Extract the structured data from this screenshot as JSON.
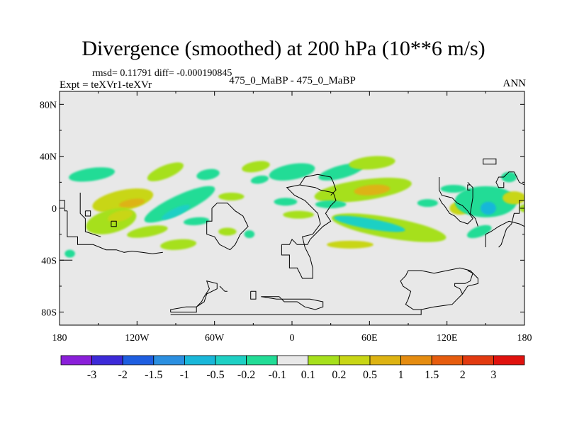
{
  "title": "Divergence (smoothed) at 200 hPa (10**6 m/s)",
  "stats_line": "rmsd= 0.11791 diff= -0.000190845",
  "expt_line": "Expt = teXVr1-teXVr",
  "case_line": "475_0_MaBP - 475_0_MaBP",
  "season": "ANN",
  "chart_data": {
    "type": "heatmap",
    "title": "Divergence (smoothed) at 200 hPa (10**6 m/s)",
    "projection": "cylindrical equidistant",
    "xlim": [
      -180,
      180
    ],
    "ylim": [
      -90,
      90
    ],
    "x_ticks": [
      {
        "value": -180,
        "label": "180"
      },
      {
        "value": -120,
        "label": "120W"
      },
      {
        "value": -60,
        "label": "60W"
      },
      {
        "value": 0,
        "label": "0"
      },
      {
        "value": 60,
        "label": "60E"
      },
      {
        "value": 120,
        "label": "120E"
      },
      {
        "value": 180,
        "label": "180"
      }
    ],
    "y_ticks": [
      {
        "value": 80,
        "label": "80N"
      },
      {
        "value": 40,
        "label": "40N"
      },
      {
        "value": 0,
        "label": "0"
      },
      {
        "value": -40,
        "label": "40S"
      },
      {
        "value": -80,
        "label": "80S"
      }
    ],
    "colorbar": {
      "labels": [
        "-3",
        "-2",
        "-1.5",
        "-1",
        "-0.5",
        "-0.2",
        "-0.1",
        "0.1",
        "0.2",
        "0.5",
        "1",
        "1.5",
        "2",
        "3"
      ],
      "colors": [
        "#8a1fd9",
        "#3c2ad8",
        "#1e5ee0",
        "#2b8fe0",
        "#19b7d9",
        "#1ed0c4",
        "#22dc96",
        "#e8e8e8",
        "#a6e01c",
        "#c8d615",
        "#ddb312",
        "#e58c10",
        "#e65c0e",
        "#e23a10",
        "#e0120e"
      ]
    },
    "background_color": "#e8e8e8",
    "features": [
      {
        "lon": -155,
        "lat": 26,
        "rlon": 18,
        "rlat": 5,
        "rot": -8,
        "cls": 6
      },
      {
        "lon": -131,
        "lat": 6,
        "rlon": 24,
        "rlat": 8,
        "rot": -12,
        "cls": 9
      },
      {
        "lon": -124,
        "lat": 4,
        "rlon": 10,
        "rlat": 3,
        "rot": -10,
        "cls": 10
      },
      {
        "lon": -140,
        "lat": -10,
        "rlon": 20,
        "rlat": 9,
        "rot": -15,
        "cls": 8
      },
      {
        "lon": -133,
        "lat": -6,
        "rlon": 10,
        "rlat": 4,
        "rot": -15,
        "cls": 9
      },
      {
        "lon": -98,
        "lat": 28,
        "rlon": 15,
        "rlat": 5,
        "rot": -22,
        "cls": 8
      },
      {
        "lon": -87,
        "lat": 3,
        "rlon": 30,
        "rlat": 7,
        "rot": -25,
        "cls": 6
      },
      {
        "lon": -90,
        "lat": -3,
        "rlon": 12,
        "rlat": 3,
        "rot": -25,
        "cls": 5
      },
      {
        "lon": -65,
        "lat": 26,
        "rlon": 9,
        "rlat": 4,
        "rot": -10,
        "cls": 6
      },
      {
        "lon": -112,
        "lat": -18,
        "rlon": 16,
        "rlat": 4,
        "rot": -10,
        "cls": 8
      },
      {
        "lon": -88,
        "lat": -28,
        "rlon": 14,
        "rlat": 4,
        "rot": -5,
        "cls": 8
      },
      {
        "lon": -74,
        "lat": -10,
        "rlon": 10,
        "rlat": 3,
        "rot": -5,
        "cls": 6
      },
      {
        "lon": -47,
        "lat": 9,
        "rlon": 10,
        "rlat": 3,
        "rot": 0,
        "cls": 8
      },
      {
        "lon": -50,
        "lat": -18,
        "rlon": 7,
        "rlat": 3,
        "rot": 0,
        "cls": 8
      },
      {
        "lon": -33,
        "lat": -20,
        "rlon": 4,
        "rlat": 3,
        "rot": 0,
        "cls": 6
      },
      {
        "lon": -28,
        "lat": 32,
        "rlon": 11,
        "rlat": 4,
        "rot": -10,
        "cls": 8
      },
      {
        "lon": -25,
        "lat": 22,
        "rlon": 7,
        "rlat": 3,
        "rot": -10,
        "cls": 6
      },
      {
        "lon": 0,
        "lat": 28,
        "rlon": 18,
        "rlat": 6,
        "rot": -10,
        "cls": 6
      },
      {
        "lon": -5,
        "lat": 5,
        "rlon": 9,
        "rlat": 3,
        "rot": 0,
        "cls": 6
      },
      {
        "lon": 5,
        "lat": -5,
        "rlon": 12,
        "rlat": 3,
        "rot": 0,
        "cls": 8
      },
      {
        "lon": 38,
        "lat": 28,
        "rlon": 18,
        "rlat": 5,
        "rot": -15,
        "cls": 6
      },
      {
        "lon": 62,
        "lat": 35,
        "rlon": 18,
        "rlat": 5,
        "rot": -5,
        "cls": 8
      },
      {
        "lon": 55,
        "lat": 14,
        "rlon": 38,
        "rlat": 8,
        "rot": -8,
        "cls": 8
      },
      {
        "lon": 62,
        "lat": 14,
        "rlon": 14,
        "rlat": 4,
        "rot": -5,
        "cls": 10
      },
      {
        "lon": 30,
        "lat": 3,
        "rlon": 12,
        "rlat": 3,
        "rot": 0,
        "cls": 6
      },
      {
        "lon": 75,
        "lat": -15,
        "rlon": 45,
        "rlat": 8,
        "rot": 10,
        "cls": 8
      },
      {
        "lon": 60,
        "lat": -12,
        "rlon": 28,
        "rlat": 4,
        "rot": 10,
        "cls": 5
      },
      {
        "lon": 45,
        "lat": -28,
        "rlon": 18,
        "rlat": 3,
        "rot": 0,
        "cls": 9
      },
      {
        "lon": 105,
        "lat": 4,
        "rlon": 8,
        "rlat": 3,
        "rot": 0,
        "cls": 6
      },
      {
        "lon": 125,
        "lat": 15,
        "rlon": 10,
        "rlat": 3,
        "rot": 0,
        "cls": 6
      },
      {
        "lon": 130,
        "lat": 0,
        "rlon": 8,
        "rlat": 5,
        "rot": 0,
        "cls": 9
      },
      {
        "lon": 150,
        "lat": 5,
        "rlon": 24,
        "rlat": 12,
        "rot": 0,
        "cls": 6
      },
      {
        "lon": 152,
        "lat": 0,
        "rlon": 6,
        "rlat": 5,
        "rot": 0,
        "cls": 4
      },
      {
        "lon": 172,
        "lat": 8,
        "rlon": 9,
        "rlat": 5,
        "rot": 0,
        "cls": 9
      },
      {
        "lon": 168,
        "lat": 24,
        "rlon": 6,
        "rlat": 4,
        "rot": 0,
        "cls": 6
      },
      {
        "lon": 145,
        "lat": -18,
        "rlon": 10,
        "rlat": 4,
        "rot": -20,
        "cls": 6
      },
      {
        "lon": 180,
        "lat": 0,
        "rlon": 4,
        "rlat": 3,
        "rot": 0,
        "cls": 8
      },
      {
        "lon": -172,
        "lat": -35,
        "rlon": 4,
        "rlat": 3,
        "rot": 0,
        "cls": 6
      }
    ],
    "coastlines": [
      [
        [
          -174,
          -2
        ],
        [
          -174,
          -22
        ],
        [
          -166,
          -22
        ],
        [
          -166,
          -28
        ],
        [
          -154,
          -28
        ],
        [
          -144,
          -32
        ],
        [
          -136,
          -32
        ],
        [
          -130,
          -34
        ],
        [
          -124,
          -33
        ],
        [
          -116,
          -34
        ],
        [
          -108,
          -35
        ],
        [
          -100,
          -34
        ]
      ],
      [
        [
          -164,
          12
        ],
        [
          -164,
          -4
        ],
        [
          -160,
          -8
        ],
        [
          -160,
          -18
        ],
        [
          -148,
          -22
        ]
      ],
      [
        [
          -140,
          -10
        ],
        [
          -136,
          -10
        ],
        [
          -136,
          -14
        ],
        [
          -140,
          -14
        ],
        [
          -140,
          -10
        ]
      ],
      [
        [
          -160,
          -2
        ],
        [
          -156,
          -2
        ],
        [
          -156,
          -6
        ],
        [
          -160,
          -6
        ],
        [
          -160,
          -2
        ]
      ],
      [
        [
          -180,
          6
        ],
        [
          -176,
          6
        ],
        [
          -176,
          -2
        ],
        [
          -174,
          -2
        ]
      ],
      [
        [
          -62,
          0
        ],
        [
          -62,
          -10
        ],
        [
          -66,
          -10
        ],
        [
          -66,
          -20
        ],
        [
          -60,
          -22
        ],
        [
          -56,
          -28
        ],
        [
          -48,
          -32
        ],
        [
          -44,
          -28
        ],
        [
          -40,
          -20
        ],
        [
          -34,
          -14
        ],
        [
          -38,
          -6
        ],
        [
          -44,
          -2
        ],
        [
          -50,
          4
        ],
        [
          -58,
          4
        ],
        [
          -62,
          0
        ]
      ],
      [
        [
          -8,
          -28
        ],
        [
          -8,
          -36
        ],
        [
          -2,
          -36
        ],
        [
          -2,
          -46
        ],
        [
          4,
          -46
        ],
        [
          8,
          -54
        ],
        [
          16,
          -54
        ],
        [
          16,
          -46
        ],
        [
          14,
          -38
        ],
        [
          10,
          -30
        ],
        [
          8,
          -22
        ],
        [
          16,
          -20
        ],
        [
          22,
          -12
        ],
        [
          20,
          -4
        ],
        [
          10,
          6
        ],
        [
          2,
          10
        ],
        [
          -4,
          16
        ],
        [
          6,
          18
        ],
        [
          18,
          16
        ],
        [
          22,
          14
        ],
        [
          32,
          12
        ],
        [
          34,
          6
        ],
        [
          30,
          2
        ],
        [
          26,
          -4
        ],
        [
          30,
          -10
        ],
        [
          24,
          -14
        ],
        [
          20,
          -18
        ],
        [
          14,
          -24
        ],
        [
          12,
          -28
        ],
        [
          4,
          -28
        ],
        [
          0,
          -24
        ],
        [
          -2,
          -28
        ],
        [
          -8,
          -28
        ]
      ],
      [
        [
          6,
          18
        ],
        [
          10,
          24
        ],
        [
          20,
          26
        ],
        [
          30,
          24
        ],
        [
          32,
          20
        ],
        [
          34,
          14
        ],
        [
          30,
          10
        ]
      ],
      [
        [
          114,
          24
        ],
        [
          114,
          14
        ],
        [
          116,
          10
        ],
        [
          124,
          8
        ],
        [
          128,
          4
        ],
        [
          132,
          2
        ],
        [
          136,
          -2
        ],
        [
          140,
          -8
        ],
        [
          136,
          -12
        ],
        [
          130,
          -10
        ],
        [
          126,
          -6
        ],
        [
          122,
          -4
        ],
        [
          118,
          2
        ],
        [
          116,
          4
        ],
        [
          114,
          8
        ]
      ],
      [
        [
          -180,
          -40
        ],
        [
          -170,
          -40
        ]
      ],
      [
        [
          -32,
          -64
        ],
        [
          -32,
          -70
        ],
        [
          -28,
          -70
        ],
        [
          -28,
          -64
        ],
        [
          -32,
          -64
        ]
      ],
      [
        [
          -56,
          -60
        ],
        [
          -52,
          -64
        ],
        [
          -50,
          -64
        ]
      ],
      [
        [
          -94,
          -80
        ],
        [
          -74,
          -80
        ],
        [
          -74,
          -76
        ],
        [
          -70,
          -72
        ],
        [
          -68,
          -68
        ],
        [
          -64,
          -62
        ],
        [
          -66,
          -56
        ],
        [
          -58,
          -58
        ],
        [
          -58,
          -62
        ],
        [
          -66,
          -66
        ],
        [
          -68,
          -72
        ],
        [
          -74,
          -76
        ],
        [
          -82,
          -76
        ],
        [
          -94,
          -78
        ],
        [
          -94,
          -80
        ]
      ],
      [
        [
          -94,
          -82
        ],
        [
          -60,
          -82
        ],
        [
          0,
          -82
        ],
        [
          60,
          -82
        ],
        [
          90,
          -82
        ],
        [
          100,
          -82
        ],
        [
          100,
          -78
        ],
        [
          110,
          -76
        ],
        [
          124,
          -74
        ],
        [
          128,
          -70
        ],
        [
          132,
          -66
        ],
        [
          136,
          -60
        ],
        [
          144,
          -58
        ],
        [
          144,
          -54
        ],
        [
          138,
          -48
        ],
        [
          130,
          -46
        ],
        [
          120,
          -48
        ],
        [
          110,
          -50
        ],
        [
          100,
          -48
        ],
        [
          94,
          -48
        ],
        [
          90,
          -48
        ],
        [
          88,
          -52
        ],
        [
          84,
          -56
        ],
        [
          86,
          -60
        ],
        [
          92,
          -64
        ],
        [
          90,
          -70
        ],
        [
          88,
          -74
        ],
        [
          94,
          -78
        ],
        [
          100,
          -78
        ]
      ],
      [
        [
          -24,
          -68
        ],
        [
          -10,
          -68
        ],
        [
          -6,
          -72
        ],
        [
          4,
          -72
        ],
        [
          10,
          -76
        ],
        [
          18,
          -78
        ],
        [
          24,
          -76
        ],
        [
          24,
          -72
        ],
        [
          14,
          -70
        ],
        [
          0,
          -70
        ],
        [
          -12,
          -70
        ],
        [
          -24,
          -68
        ]
      ],
      [
        [
          132,
          -66
        ],
        [
          130,
          -62
        ],
        [
          126,
          -60
        ],
        [
          126,
          -58
        ],
        [
          134,
          -58
        ],
        [
          138,
          -56
        ],
        [
          140,
          -50
        ],
        [
          136,
          -48
        ]
      ],
      [
        [
          150,
          -30
        ],
        [
          150,
          -20
        ],
        [
          154,
          -18
        ],
        [
          160,
          -14
        ],
        [
          168,
          -10
        ],
        [
          176,
          -12
        ],
        [
          180,
          -14
        ]
      ],
      [
        [
          164,
          20
        ],
        [
          164,
          16
        ],
        [
          160,
          16
        ],
        [
          158,
          20
        ],
        [
          160,
          24
        ],
        [
          164,
          24
        ],
        [
          168,
          28
        ],
        [
          172,
          28
        ],
        [
          174,
          24
        ],
        [
          176,
          20
        ],
        [
          180,
          18
        ],
        [
          180,
          6
        ],
        [
          176,
          6
        ],
        [
          176,
          -4
        ],
        [
          172,
          -4
        ],
        [
          170,
          -12
        ],
        [
          166,
          -16
        ],
        [
          164,
          -22
        ],
        [
          162,
          -28
        ],
        [
          160,
          -30
        ]
      ],
      [
        [
          148,
          38
        ],
        [
          148,
          34
        ],
        [
          158,
          34
        ],
        [
          158,
          38
        ],
        [
          148,
          38
        ]
      ],
      [
        [
          136,
          20
        ],
        [
          140,
          16
        ],
        [
          140,
          8
        ],
        [
          138,
          -4
        ],
        [
          142,
          -8
        ],
        [
          144,
          -14
        ]
      ],
      [
        [
          138,
          18
        ],
        [
          136,
          18
        ],
        [
          136,
          14
        ],
        [
          138,
          14
        ]
      ]
    ]
  }
}
